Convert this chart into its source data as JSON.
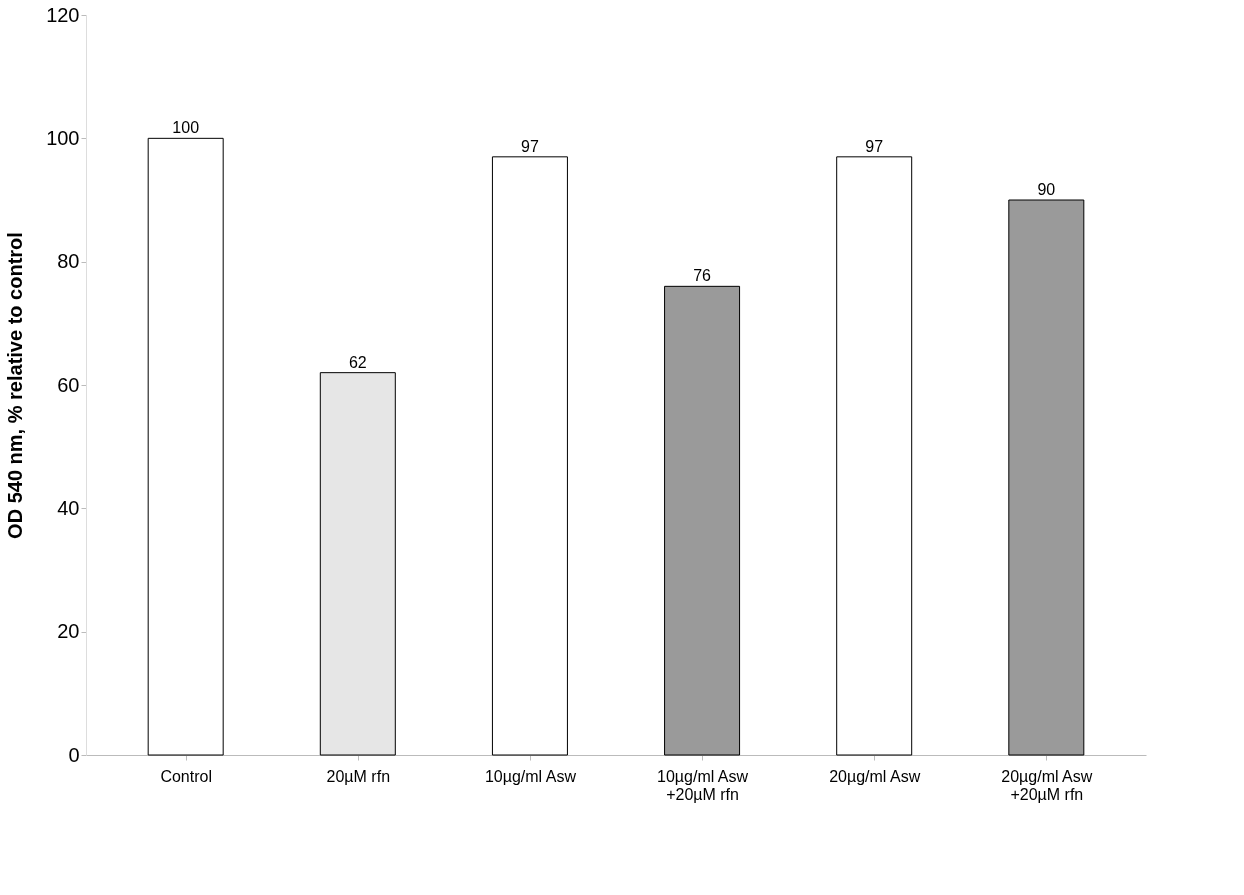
{
  "chart_data": {
    "type": "bar",
    "ylabel": "OD 540 nm, % relative to control",
    "categories": [
      "Control",
      "20µM rfn",
      "10µg/ml Asw",
      "10µg/ml Asw\n+20µM rfn",
      "20µg/ml Asw",
      "20µg/ml Asw\n+20µM rfn"
    ],
    "values": [
      100,
      62,
      97,
      76,
      97,
      90
    ],
    "colors": [
      "#ffffff",
      "#e6e6e6",
      "#ffffff",
      "#9a9a9a",
      "#ffffff",
      "#9a9a9a"
    ],
    "ylim": [
      0,
      120
    ],
    "yticks": [
      0,
      20,
      40,
      60,
      80,
      100,
      120
    ],
    "data_labels": true,
    "grid": false
  }
}
